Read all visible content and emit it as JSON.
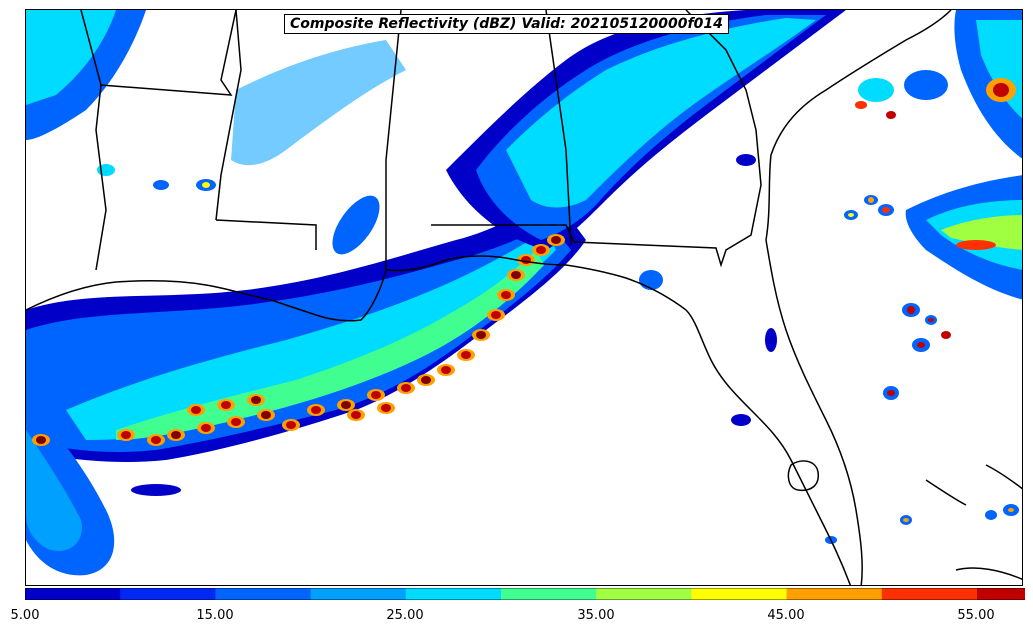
{
  "title": "Composite Reflectivity (dBZ) Valid: 202105120000f014",
  "colorbar": {
    "colors": [
      "#0000c8",
      "#0028f5",
      "#0064ff",
      "#00a0ff",
      "#00dcff",
      "#40ff90",
      "#a0ff40",
      "#ffff00",
      "#ffa000",
      "#ff3000",
      "#c00000",
      "#800000"
    ],
    "tick_labels": [
      "5.00",
      "15.00",
      "25.00",
      "35.00",
      "45.00",
      "55.00"
    ]
  },
  "map": {
    "icons": [
      "state-border-icon",
      "coastline-icon"
    ],
    "land_color": "#ffffff",
    "border_color": "#000000"
  }
}
